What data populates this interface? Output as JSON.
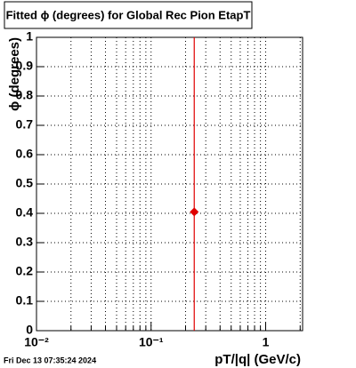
{
  "chart_data": {
    "type": "scatter",
    "title": "Fitted ϕ (degrees) for Global Rec Pion EtapT",
    "x_label": "pT/|q| (GeV/c)",
    "y_label": "ϕ (degrees)",
    "footer": "Fri Dec 13 07:35:24 2024",
    "x_scale": "log",
    "xlim": [
      0.01,
      2.1
    ],
    "ylim": [
      0,
      1
    ],
    "xticks": [
      {
        "value": 0.01,
        "label": "10⁻²"
      },
      {
        "value": 0.1,
        "label": "10⁻¹"
      },
      1
    ],
    "xminor": [
      0.02,
      0.03,
      0.04,
      0.05,
      0.06,
      0.07,
      0.08,
      0.09,
      0.2,
      0.3,
      0.4,
      0.5,
      0.6,
      0.7,
      0.8,
      0.9,
      2
    ],
    "yticks": [
      0,
      0.1,
      0.2,
      0.3,
      0.4,
      0.5,
      0.6,
      0.7,
      0.8,
      0.9,
      1
    ],
    "grid": true,
    "series": [
      {
        "color": "#e00000",
        "x": [
          0.238
        ],
        "values": [
          0.405
        ],
        "errors": [
          1
        ]
      }
    ]
  }
}
